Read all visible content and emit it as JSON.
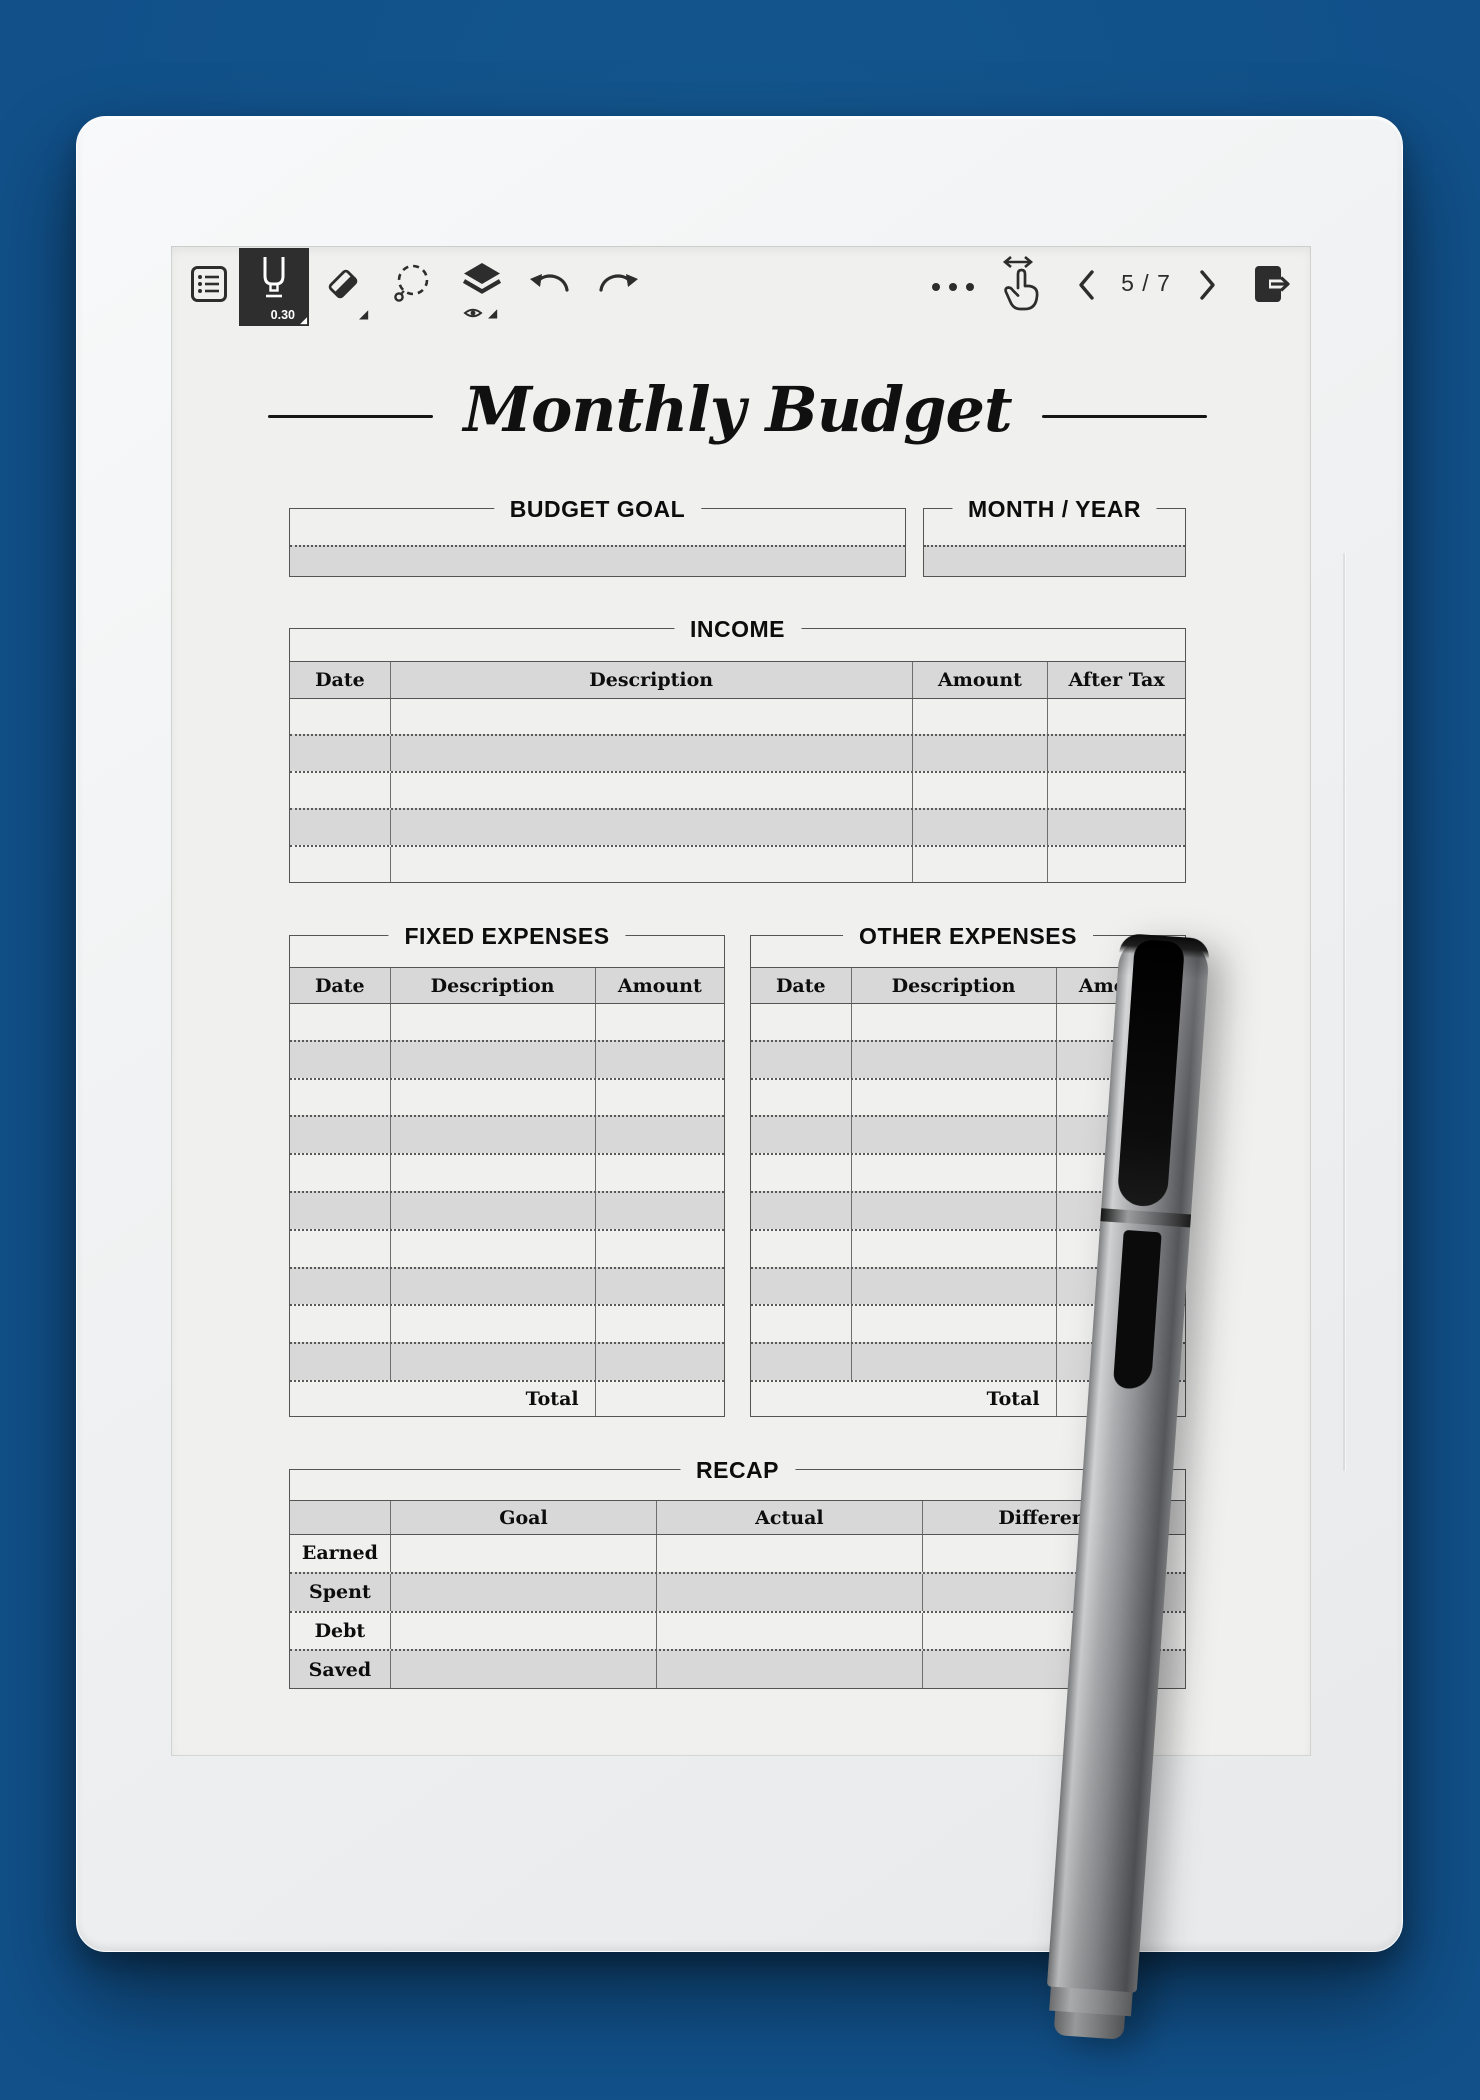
{
  "toolbar": {
    "pen_size": "0.30",
    "page_indicator": "5 / 7"
  },
  "page": {
    "title": "Monthly Budget",
    "budget_goal": {
      "label": "BUDGET GOAL"
    },
    "month_year": {
      "label": "MONTH / YEAR"
    },
    "income": {
      "label": "INCOME",
      "columns": [
        "Date",
        "Description",
        "Amount",
        "After Tax"
      ],
      "row_count": 5
    },
    "fixed_expenses": {
      "label": "FIXED EXPENSES",
      "columns": [
        "Date",
        "Description",
        "Amount"
      ],
      "row_count": 10,
      "total_label": "Total"
    },
    "other_expenses": {
      "label": "OTHER EXPENSES",
      "columns": [
        "Date",
        "Description",
        "Amount"
      ],
      "row_count": 10,
      "total_label": "Total"
    },
    "recap": {
      "label": "RECAP",
      "columns": [
        "Goal",
        "Actual",
        "Difference"
      ],
      "row_labels": [
        "Earned",
        "Spent",
        "Debt",
        "Saved"
      ]
    }
  },
  "colors": {
    "desk_background": "#115089",
    "selected_tool_bg": "#2E2E2E",
    "table_fill_gray": "#D8D8D8"
  }
}
